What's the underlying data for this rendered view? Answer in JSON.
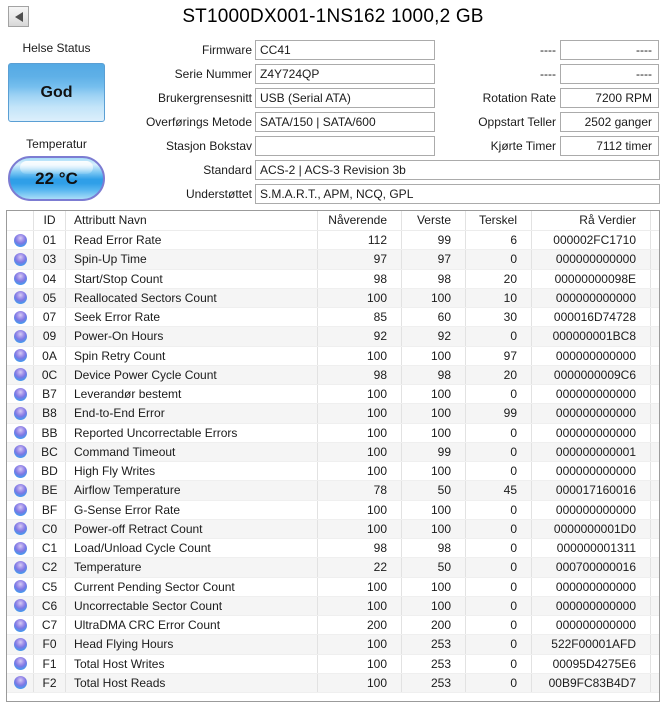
{
  "window": {
    "title": "ST1000DX001-1NS162 1000,2 GB"
  },
  "health": {
    "label": "Helse Status",
    "status": "God"
  },
  "temperature": {
    "label": "Temperatur",
    "value": "22 °C"
  },
  "info_fields": [
    {
      "label": "Firmware",
      "value": "CC41"
    },
    {
      "label": "Serie Nummer",
      "value": "Z4Y724QP"
    },
    {
      "label": "Brukergrensesnitt",
      "value": "USB (Serial ATA)"
    },
    {
      "label": "Overførings Metode",
      "value": "SATA/150 | SATA/600"
    },
    {
      "label": "Stasjon Bokstav",
      "value": ""
    },
    {
      "label": "Standard",
      "value": "ACS-2 | ACS-3 Revision 3b"
    },
    {
      "label": "Understøttet",
      "value": "S.M.A.R.T., APM, NCQ, GPL"
    }
  ],
  "right_fields": [
    {
      "label": "----",
      "value": "----"
    },
    {
      "label": "----",
      "value": "----"
    },
    {
      "label": "Rotation Rate",
      "value": "7200 RPM"
    },
    {
      "label": "Oppstart Teller",
      "value": "2502 ganger"
    },
    {
      "label": "Kjørte Timer",
      "value": "7112 timer"
    }
  ],
  "table": {
    "headers": {
      "id": "ID",
      "name": "Attributt Navn",
      "current": "Nåverende",
      "worst": "Verste",
      "threshold": "Terskel",
      "raw": "Rå Verdier"
    },
    "rows": [
      {
        "id": "01",
        "name": "Read Error Rate",
        "current": "112",
        "worst": "99",
        "threshold": "6",
        "raw": "000002FC1710"
      },
      {
        "id": "03",
        "name": "Spin-Up Time",
        "current": "97",
        "worst": "97",
        "threshold": "0",
        "raw": "000000000000"
      },
      {
        "id": "04",
        "name": "Start/Stop Count",
        "current": "98",
        "worst": "98",
        "threshold": "20",
        "raw": "00000000098E"
      },
      {
        "id": "05",
        "name": "Reallocated Sectors Count",
        "current": "100",
        "worst": "100",
        "threshold": "10",
        "raw": "000000000000"
      },
      {
        "id": "07",
        "name": "Seek Error Rate",
        "current": "85",
        "worst": "60",
        "threshold": "30",
        "raw": "000016D74728"
      },
      {
        "id": "09",
        "name": "Power-On Hours",
        "current": "92",
        "worst": "92",
        "threshold": "0",
        "raw": "000000001BC8"
      },
      {
        "id": "0A",
        "name": "Spin Retry Count",
        "current": "100",
        "worst": "100",
        "threshold": "97",
        "raw": "000000000000"
      },
      {
        "id": "0C",
        "name": "Device Power Cycle Count",
        "current": "98",
        "worst": "98",
        "threshold": "20",
        "raw": "0000000009C6"
      },
      {
        "id": "B7",
        "name": "Leverandør bestemt",
        "current": "100",
        "worst": "100",
        "threshold": "0",
        "raw": "000000000000"
      },
      {
        "id": "B8",
        "name": "End-to-End Error",
        "current": "100",
        "worst": "100",
        "threshold": "99",
        "raw": "000000000000"
      },
      {
        "id": "BB",
        "name": "Reported Uncorrectable Errors",
        "current": "100",
        "worst": "100",
        "threshold": "0",
        "raw": "000000000000"
      },
      {
        "id": "BC",
        "name": "Command Timeout",
        "current": "100",
        "worst": "99",
        "threshold": "0",
        "raw": "000000000001"
      },
      {
        "id": "BD",
        "name": "High Fly Writes",
        "current": "100",
        "worst": "100",
        "threshold": "0",
        "raw": "000000000000"
      },
      {
        "id": "BE",
        "name": "Airflow Temperature",
        "current": "78",
        "worst": "50",
        "threshold": "45",
        "raw": "000017160016"
      },
      {
        "id": "BF",
        "name": "G-Sense Error Rate",
        "current": "100",
        "worst": "100",
        "threshold": "0",
        "raw": "000000000000"
      },
      {
        "id": "C0",
        "name": "Power-off Retract Count",
        "current": "100",
        "worst": "100",
        "threshold": "0",
        "raw": "0000000001D0"
      },
      {
        "id": "C1",
        "name": "Load/Unload Cycle Count",
        "current": "98",
        "worst": "98",
        "threshold": "0",
        "raw": "000000001311"
      },
      {
        "id": "C2",
        "name": "Temperature",
        "current": "22",
        "worst": "50",
        "threshold": "0",
        "raw": "000700000016"
      },
      {
        "id": "C5",
        "name": "Current Pending Sector Count",
        "current": "100",
        "worst": "100",
        "threshold": "0",
        "raw": "000000000000"
      },
      {
        "id": "C6",
        "name": "Uncorrectable Sector Count",
        "current": "100",
        "worst": "100",
        "threshold": "0",
        "raw": "000000000000"
      },
      {
        "id": "C7",
        "name": "UltraDMA CRC Error Count",
        "current": "200",
        "worst": "200",
        "threshold": "0",
        "raw": "000000000000"
      },
      {
        "id": "F0",
        "name": "Head Flying Hours",
        "current": "100",
        "worst": "253",
        "threshold": "0",
        "raw": "522F00001AFD"
      },
      {
        "id": "F1",
        "name": "Total Host Writes",
        "current": "100",
        "worst": "253",
        "threshold": "0",
        "raw": "00095D4275E6"
      },
      {
        "id": "F2",
        "name": "Total Host Reads",
        "current": "100",
        "worst": "253",
        "threshold": "0",
        "raw": "00B9FC83B4D7"
      }
    ]
  },
  "colors": {
    "health_good_top": "#55aae4",
    "temp_pill_core": "#2f9fe8",
    "orb_purple": "#7b78e4",
    "orb_cyan": "#3cc2f8"
  }
}
